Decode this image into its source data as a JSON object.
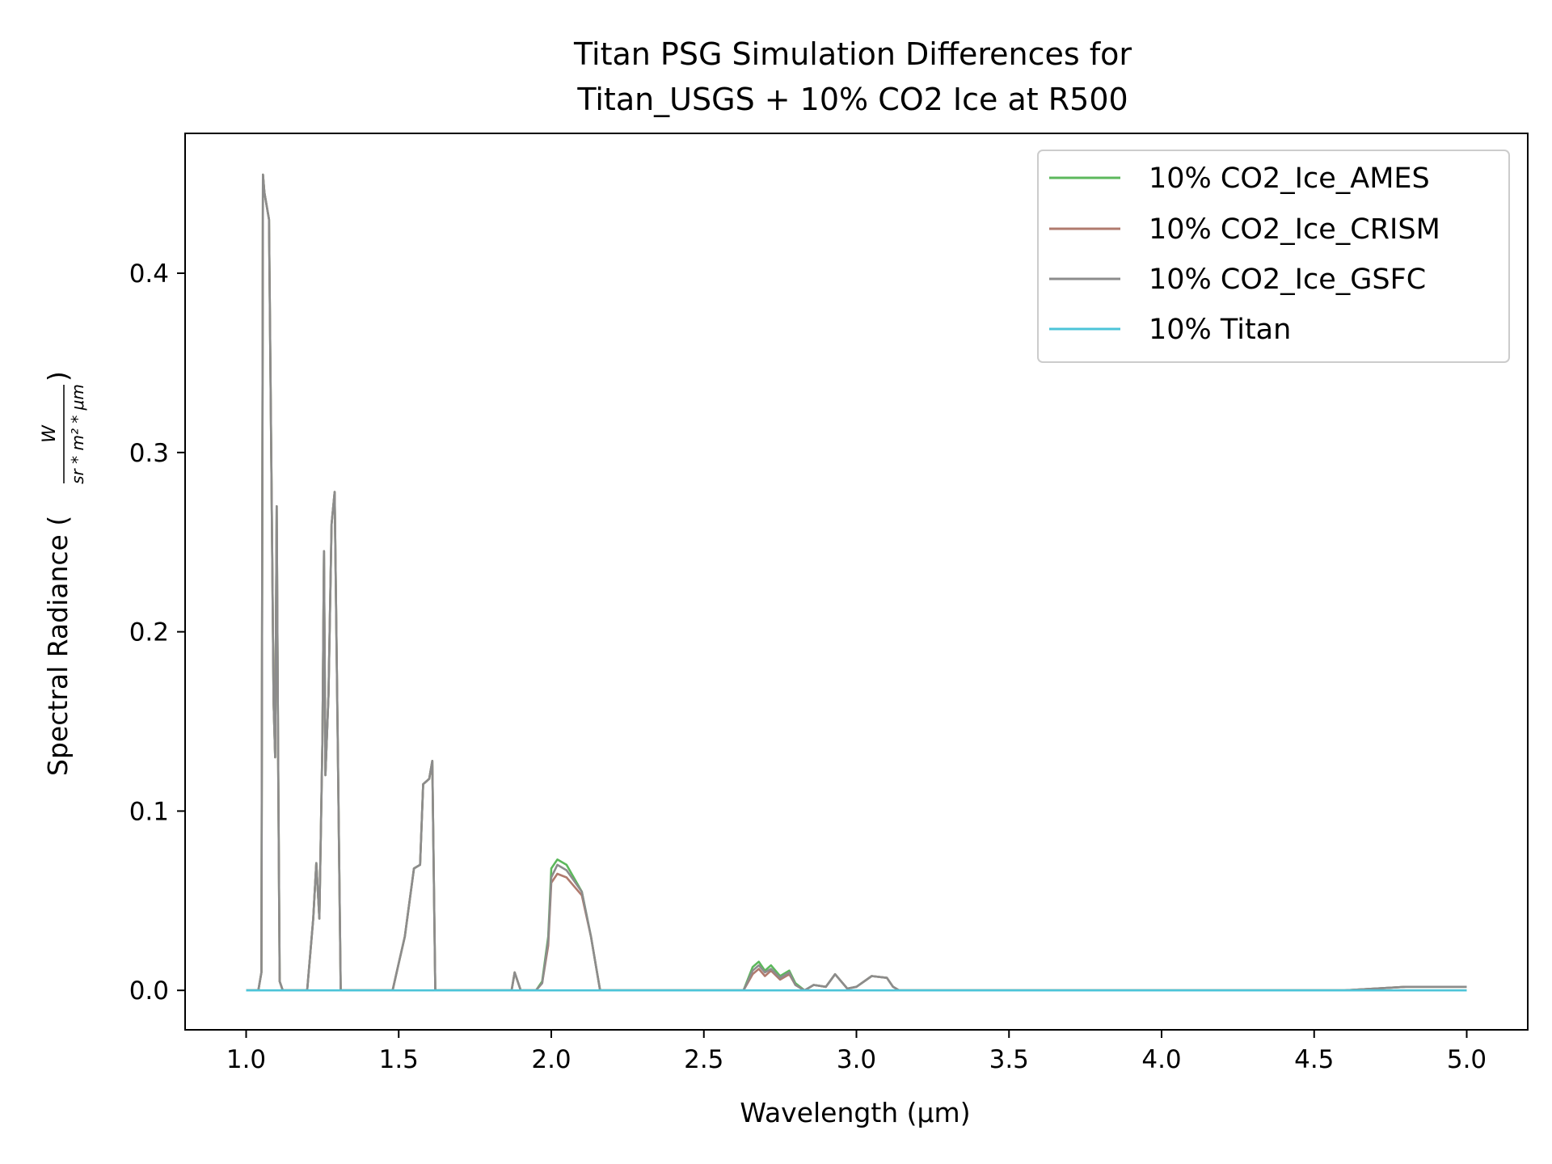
{
  "chart_data": {
    "type": "line",
    "title": [
      "Titan PSG Simulation Differences for",
      "Titan_USGS + 10% CO2 Ice at R500"
    ],
    "xlabel": "Wavelength (μm)",
    "ylabel": "Spectral Radiance (",
    "ylabel_unit_numerator": "W",
    "ylabel_unit_denominator": "sr * m² * μm",
    "ylabel_close": ")",
    "xlim": [
      0.8,
      5.2
    ],
    "ylim": [
      -0.022,
      0.478
    ],
    "xticks": [
      1.0,
      1.5,
      2.0,
      2.5,
      3.0,
      3.5,
      4.0,
      4.5,
      5.0
    ],
    "xtick_labels": [
      "1.0",
      "1.5",
      "2.0",
      "2.5",
      "3.0",
      "3.5",
      "4.0",
      "4.5",
      "5.0"
    ],
    "yticks": [
      0.0,
      0.1,
      0.2,
      0.3,
      0.4
    ],
    "ytick_labels": [
      "0.0",
      "0.1",
      "0.2",
      "0.3",
      "0.4"
    ],
    "grid": false,
    "legend_position": "top-right",
    "series": [
      {
        "name": "10% CO2_Ice_AMES",
        "color": "#5cb85c",
        "x": [
          1.0,
          1.04,
          1.05,
          1.055,
          1.06,
          1.075,
          1.09,
          1.095,
          1.1,
          1.105,
          1.11,
          1.12,
          1.2,
          1.22,
          1.23,
          1.24,
          1.25,
          1.255,
          1.26,
          1.27,
          1.28,
          1.29,
          1.3,
          1.31,
          1.32,
          1.48,
          1.5,
          1.52,
          1.55,
          1.57,
          1.58,
          1.6,
          1.61,
          1.62,
          1.87,
          1.88,
          1.9,
          1.95,
          1.97,
          1.99,
          2.0,
          2.02,
          2.05,
          2.1,
          2.13,
          2.15,
          2.16,
          2.63,
          2.66,
          2.68,
          2.7,
          2.72,
          2.75,
          2.78,
          2.8,
          2.83,
          2.86,
          2.9,
          2.93,
          2.97,
          3.0,
          3.05,
          3.1,
          3.12,
          3.14,
          4.6,
          4.8,
          4.9,
          5.0
        ],
        "y": [
          0.0,
          0.0,
          0.01,
          0.455,
          0.445,
          0.43,
          0.16,
          0.13,
          0.27,
          0.13,
          0.005,
          0.0,
          0.0,
          0.04,
          0.071,
          0.04,
          0.14,
          0.245,
          0.12,
          0.165,
          0.26,
          0.278,
          0.14,
          0.0,
          0.0,
          0.0,
          0.015,
          0.03,
          0.068,
          0.07,
          0.115,
          0.118,
          0.128,
          0.0,
          0.0,
          0.01,
          0.0,
          0.0,
          0.005,
          0.03,
          0.068,
          0.073,
          0.07,
          0.055,
          0.03,
          0.01,
          0.0,
          0.0,
          0.013,
          0.016,
          0.011,
          0.014,
          0.008,
          0.011,
          0.004,
          0.0,
          0.003,
          0.002,
          0.009,
          0.001,
          0.002,
          0.008,
          0.007,
          0.002,
          0.0,
          0.0,
          0.002,
          0.002,
          0.002
        ]
      },
      {
        "name": "10% CO2_Ice_CRISM",
        "color": "#b07a6e",
        "x": [
          1.0,
          1.04,
          1.05,
          1.055,
          1.06,
          1.075,
          1.09,
          1.095,
          1.1,
          1.105,
          1.11,
          1.12,
          1.2,
          1.22,
          1.23,
          1.24,
          1.25,
          1.255,
          1.26,
          1.27,
          1.28,
          1.29,
          1.3,
          1.31,
          1.32,
          1.48,
          1.5,
          1.52,
          1.55,
          1.57,
          1.58,
          1.6,
          1.61,
          1.62,
          1.87,
          1.88,
          1.9,
          1.95,
          1.97,
          1.99,
          2.0,
          2.02,
          2.05,
          2.1,
          2.13,
          2.15,
          2.16,
          2.63,
          2.66,
          2.68,
          2.7,
          2.72,
          2.75,
          2.78,
          2.8,
          2.83,
          2.86,
          2.9,
          2.93,
          2.97,
          3.0,
          3.05,
          3.1,
          3.12,
          3.14,
          4.6,
          4.8,
          4.9,
          5.0
        ],
        "y": [
          0.0,
          0.0,
          0.01,
          0.455,
          0.445,
          0.43,
          0.16,
          0.13,
          0.27,
          0.13,
          0.005,
          0.0,
          0.0,
          0.04,
          0.071,
          0.04,
          0.14,
          0.245,
          0.12,
          0.165,
          0.26,
          0.278,
          0.14,
          0.0,
          0.0,
          0.0,
          0.015,
          0.03,
          0.068,
          0.07,
          0.115,
          0.118,
          0.128,
          0.0,
          0.0,
          0.01,
          0.0,
          0.0,
          0.004,
          0.025,
          0.06,
          0.065,
          0.063,
          0.053,
          0.03,
          0.01,
          0.0,
          0.0,
          0.009,
          0.012,
          0.008,
          0.011,
          0.006,
          0.009,
          0.003,
          0.0,
          0.003,
          0.002,
          0.009,
          0.001,
          0.002,
          0.008,
          0.007,
          0.002,
          0.0,
          0.0,
          0.002,
          0.002,
          0.002
        ]
      },
      {
        "name": "10% CO2_Ice_GSFC",
        "color": "#8c8c8c",
        "x": [
          1.0,
          1.04,
          1.05,
          1.055,
          1.06,
          1.075,
          1.09,
          1.095,
          1.1,
          1.105,
          1.11,
          1.12,
          1.2,
          1.22,
          1.23,
          1.24,
          1.25,
          1.255,
          1.26,
          1.27,
          1.28,
          1.29,
          1.3,
          1.31,
          1.32,
          1.48,
          1.5,
          1.52,
          1.55,
          1.57,
          1.58,
          1.6,
          1.61,
          1.62,
          1.87,
          1.88,
          1.9,
          1.95,
          1.97,
          1.99,
          2.0,
          2.02,
          2.05,
          2.1,
          2.13,
          2.15,
          2.16,
          2.63,
          2.66,
          2.68,
          2.7,
          2.72,
          2.75,
          2.78,
          2.8,
          2.83,
          2.86,
          2.9,
          2.93,
          2.97,
          3.0,
          3.05,
          3.1,
          3.12,
          3.14,
          4.6,
          4.8,
          4.9,
          5.0
        ],
        "y": [
          0.0,
          0.0,
          0.01,
          0.455,
          0.445,
          0.43,
          0.16,
          0.13,
          0.27,
          0.13,
          0.005,
          0.0,
          0.0,
          0.04,
          0.071,
          0.04,
          0.14,
          0.245,
          0.12,
          0.165,
          0.26,
          0.278,
          0.14,
          0.0,
          0.0,
          0.0,
          0.015,
          0.03,
          0.068,
          0.07,
          0.115,
          0.118,
          0.128,
          0.0,
          0.0,
          0.01,
          0.0,
          0.0,
          0.004,
          0.028,
          0.063,
          0.07,
          0.067,
          0.055,
          0.03,
          0.01,
          0.0,
          0.0,
          0.011,
          0.014,
          0.01,
          0.012,
          0.007,
          0.01,
          0.003,
          0.0,
          0.003,
          0.002,
          0.009,
          0.001,
          0.002,
          0.008,
          0.007,
          0.002,
          0.0,
          0.0,
          0.002,
          0.002,
          0.002
        ]
      },
      {
        "name": "10% Titan",
        "color": "#4cc4d8",
        "x": [
          1.0,
          5.0
        ],
        "y": [
          0.0,
          0.0
        ]
      }
    ]
  }
}
